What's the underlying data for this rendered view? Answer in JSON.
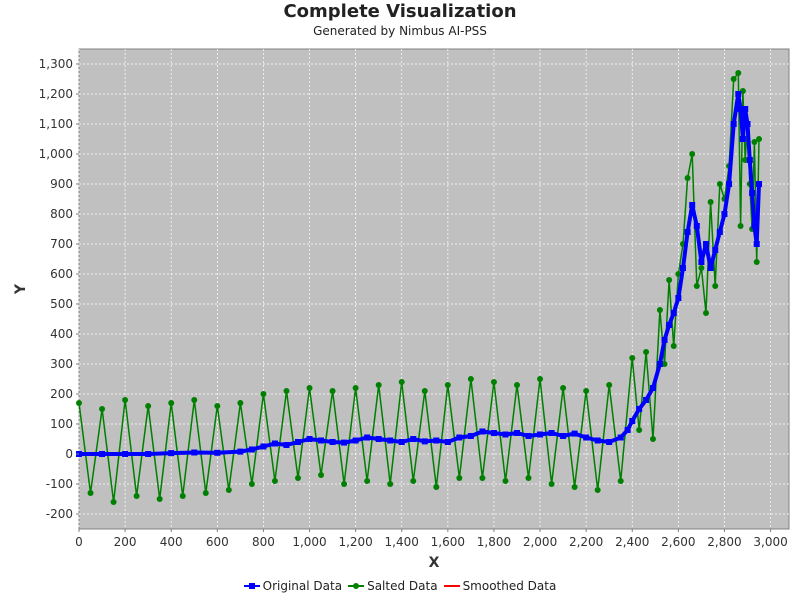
{
  "header": {
    "title": "Complete Visualization",
    "subtitle": "Generated by Nimbus AI-PSS"
  },
  "chart_data": {
    "type": "line",
    "title": "Complete Visualization",
    "subtitle": "Generated by Nimbus AI-PSS",
    "xlabel": "X",
    "ylabel": "Y",
    "xlim": [
      0,
      3080
    ],
    "ylim": [
      -250,
      1350
    ],
    "x_ticks": [
      0,
      200,
      400,
      600,
      800,
      1000,
      1200,
      1400,
      1600,
      1800,
      2000,
      2200,
      2400,
      2600,
      2800,
      3000
    ],
    "x_tick_labels": [
      "0",
      "200",
      "400",
      "600",
      "800",
      "1,000",
      "1,200",
      "1,400",
      "1,600",
      "1,800",
      "2,000",
      "2,200",
      "2,400",
      "2,600",
      "2,800",
      "3,000"
    ],
    "y_ticks": [
      -200,
      -100,
      0,
      100,
      200,
      300,
      400,
      500,
      600,
      700,
      800,
      900,
      1000,
      1100,
      1200,
      1300
    ],
    "y_tick_labels": [
      "-200",
      "-100",
      "0",
      "100",
      "200",
      "300",
      "400",
      "500",
      "600",
      "700",
      "800",
      "900",
      "1,000",
      "1,100",
      "1,200",
      "1,300"
    ],
    "grid": true,
    "legend_position": "bottom",
    "series": [
      {
        "name": "Original Data",
        "color": "#0000ff",
        "marker": "square",
        "x": [
          0,
          100,
          200,
          300,
          400,
          500,
          600,
          700,
          750,
          800,
          850,
          900,
          950,
          1000,
          1050,
          1100,
          1150,
          1200,
          1250,
          1300,
          1350,
          1400,
          1450,
          1500,
          1550,
          1600,
          1650,
          1700,
          1750,
          1800,
          1850,
          1900,
          1950,
          2000,
          2050,
          2100,
          2150,
          2200,
          2250,
          2300,
          2350,
          2380,
          2400,
          2430,
          2460,
          2490,
          2520,
          2540,
          2560,
          2580,
          2600,
          2620,
          2640,
          2660,
          2680,
          2700,
          2720,
          2740,
          2760,
          2780,
          2800,
          2820,
          2840,
          2860,
          2870,
          2880,
          2890,
          2900,
          2910,
          2920,
          2930,
          2940,
          2950
        ],
        "y": [
          0,
          0,
          0,
          0,
          3,
          5,
          4,
          8,
          15,
          25,
          35,
          30,
          40,
          50,
          45,
          40,
          38,
          45,
          55,
          50,
          45,
          40,
          50,
          42,
          45,
          40,
          55,
          60,
          75,
          70,
          65,
          70,
          60,
          65,
          70,
          60,
          68,
          55,
          45,
          40,
          55,
          80,
          110,
          150,
          180,
          220,
          300,
          380,
          430,
          470,
          520,
          620,
          740,
          830,
          760,
          640,
          700,
          620,
          680,
          740,
          800,
          900,
          1100,
          1200,
          1150,
          1050,
          1150,
          1100,
          980,
          870,
          760,
          700,
          900
        ]
      },
      {
        "name": "Salted Data",
        "color": "#008000",
        "marker": "circle",
        "x": [
          0,
          50,
          100,
          150,
          200,
          250,
          300,
          350,
          400,
          450,
          500,
          550,
          600,
          650,
          700,
          750,
          800,
          850,
          900,
          950,
          1000,
          1050,
          1100,
          1150,
          1200,
          1250,
          1300,
          1350,
          1400,
          1450,
          1500,
          1550,
          1600,
          1650,
          1700,
          1750,
          1800,
          1850,
          1900,
          1950,
          2000,
          2050,
          2100,
          2150,
          2200,
          2250,
          2300,
          2350,
          2400,
          2430,
          2460,
          2490,
          2520,
          2540,
          2560,
          2580,
          2600,
          2620,
          2640,
          2660,
          2680,
          2700,
          2720,
          2740,
          2760,
          2780,
          2800,
          2820,
          2840,
          2860,
          2870,
          2880,
          2890,
          2900,
          2910,
          2920,
          2930,
          2940,
          2950
        ],
        "y": [
          170,
          -130,
          150,
          -160,
          180,
          -140,
          160,
          -150,
          170,
          -140,
          180,
          -130,
          160,
          -120,
          170,
          -100,
          200,
          -90,
          210,
          -80,
          220,
          -70,
          210,
          -100,
          220,
          -90,
          230,
          -100,
          240,
          -90,
          210,
          -110,
          230,
          -80,
          250,
          -80,
          240,
          -90,
          230,
          -80,
          250,
          -100,
          220,
          -110,
          210,
          -120,
          230,
          -90,
          320,
          80,
          340,
          50,
          480,
          300,
          580,
          360,
          600,
          700,
          920,
          1000,
          560,
          620,
          470,
          840,
          560,
          900,
          850,
          960,
          1250,
          1270,
          760,
          1210,
          980,
          1100,
          900,
          750,
          1040,
          640,
          1050
        ]
      },
      {
        "name": "Smoothed Data",
        "color": "#ff0000",
        "marker": "none",
        "x": [],
        "y": []
      }
    ]
  }
}
